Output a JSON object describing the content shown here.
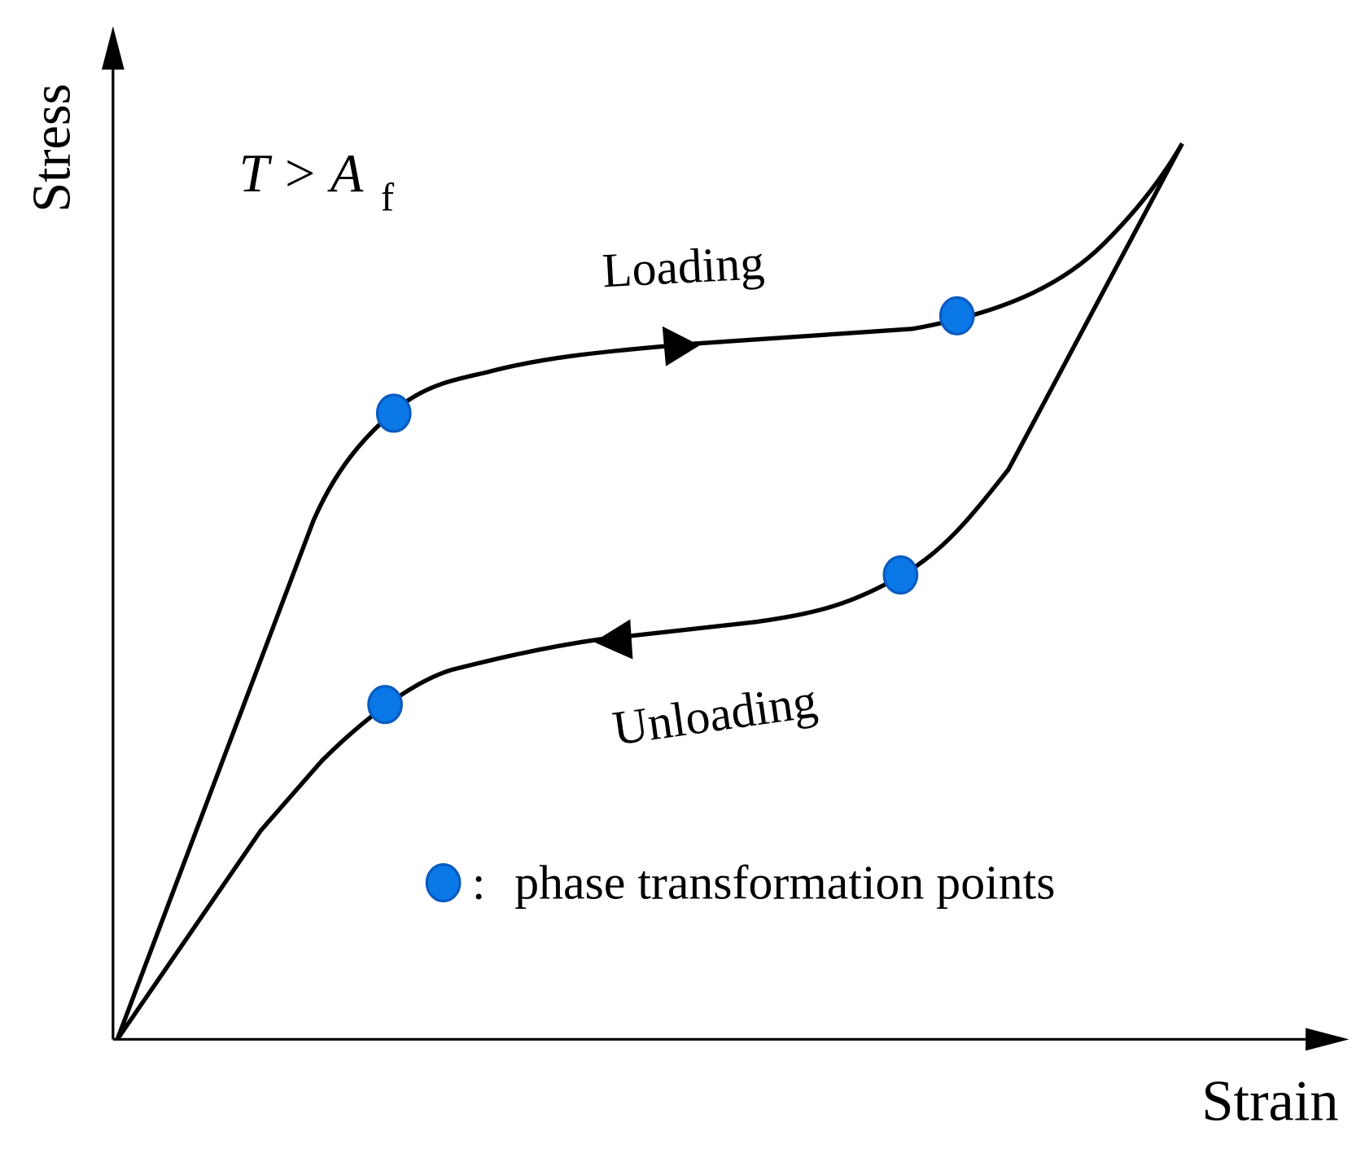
{
  "axes": {
    "y_label": "Stress",
    "x_label": "Strain"
  },
  "condition": {
    "text": "T > A",
    "subscript": "f"
  },
  "labels": {
    "loading": "Loading",
    "unloading": "Unloading"
  },
  "legend": {
    "separator": ":",
    "text": "phase transformation points"
  }
}
